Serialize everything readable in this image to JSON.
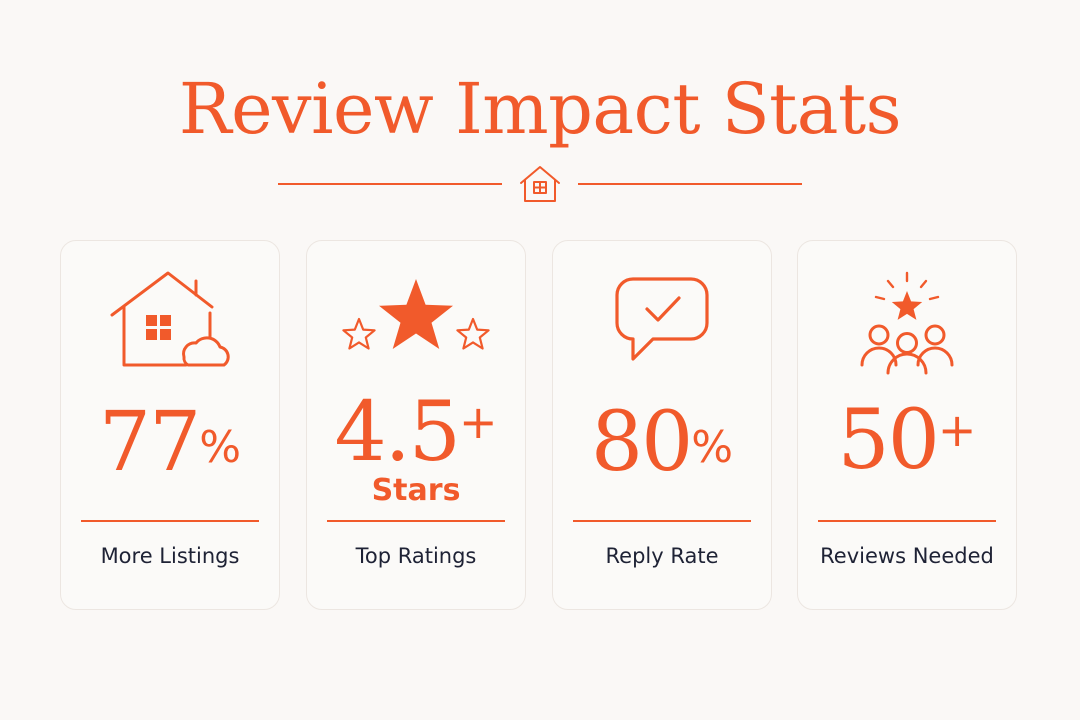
{
  "title": "Review Impact Stats",
  "colors": {
    "accent": "#f15a2b",
    "text": "#1e2235",
    "background": "#faf8f6",
    "card_border": "#ece6e1"
  },
  "divider": {
    "icon": "house-icon"
  },
  "cards": [
    {
      "icon": "house-with-cloud-icon",
      "value": "77",
      "suffix": "%",
      "sub": "",
      "label": "More Listings"
    },
    {
      "icon": "stars-icon",
      "value": "4.5",
      "suffix": "+",
      "sub": "Stars",
      "label": "Top Ratings"
    },
    {
      "icon": "chat-check-icon",
      "value": "80",
      "suffix": "%",
      "sub": "",
      "label": "Reply Rate"
    },
    {
      "icon": "people-star-icon",
      "value": "50",
      "suffix": "+",
      "sub": "",
      "label": "Reviews Needed"
    }
  ]
}
